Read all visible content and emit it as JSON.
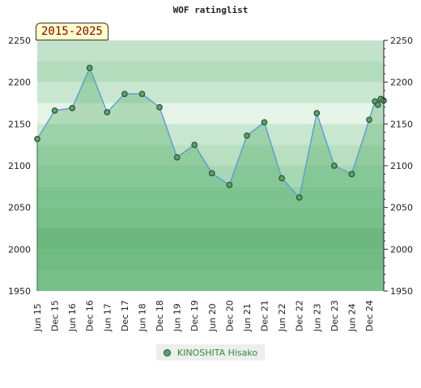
{
  "chart_data": {
    "type": "line",
    "title": "WOF ratinglist",
    "period_label": "2015-2025",
    "ylim": [
      1950,
      2250
    ],
    "y_ticks": [
      1950,
      2000,
      2050,
      2100,
      2150,
      2200,
      2250
    ],
    "x_tick_labels": [
      "Jun 15",
      "Dec 15",
      "Jun 16",
      "Dec 16",
      "Jun 17",
      "Dec 17",
      "Jun 18",
      "Dec 18",
      "Jun 19",
      "Dec 19",
      "Jun 20",
      "Dec 20",
      "Jun 21",
      "Dec 21",
      "Jun 22",
      "Dec 22",
      "Jun 23",
      "Dec 23",
      "Jun 24",
      "Dec 24"
    ],
    "series": [
      {
        "name": "KINOSHITA Hisako",
        "color": "#5aa469",
        "x": [
          "Jun 15",
          "Dec 15",
          "Jun 16",
          "Dec 16",
          "Jun 17",
          "Dec 17",
          "Jun 18",
          "Dec 18",
          "Jun 19",
          "Dec 19",
          "Jun 20",
          "Dec 20",
          "Jun 21",
          "Dec 21",
          "Jun 22",
          "Dec 22",
          "Jun 23",
          "Dec 23",
          "Jun 24",
          "Dec 24",
          "Feb 25",
          "Mar 25",
          "Apr 25",
          "May 25"
        ],
        "values": [
          2132,
          2166,
          2169,
          2217,
          2164,
          2186,
          2186,
          2170,
          2110,
          2125,
          2091,
          2077,
          2136,
          2152,
          2085,
          2062,
          2163,
          2100,
          2090,
          2155,
          2177,
          2173,
          2180,
          2178
        ]
      }
    ],
    "legend_position": "bottom",
    "grid": true
  },
  "legend": {
    "label": "KINOSHITA Hisako"
  },
  "colors": {
    "line": "#5b9bd5",
    "marker": "#5aa469",
    "fill": "#7fc08f"
  }
}
